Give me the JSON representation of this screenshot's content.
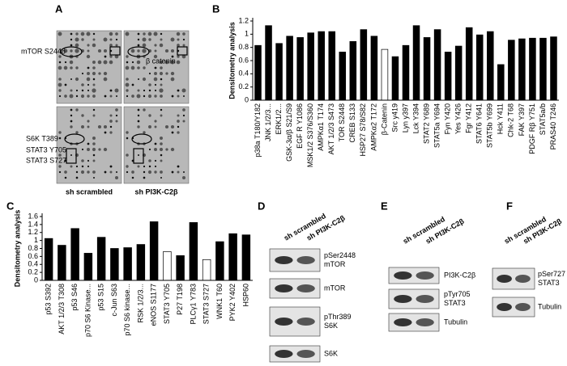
{
  "chart_data": [
    {
      "type": "bar",
      "ylabel": "Densitometry analysis",
      "categories": [
        "p38a T180/Y182",
        "JNK 1/2/3...",
        "ERK1/2...",
        "GSK-3α/β S21/S9",
        "EGF R Y1086",
        "MSK1/2 S376/S360",
        "AMPKα1 T174",
        "AKT 1/2/3 S473",
        "TOR S2448",
        "CREB S133",
        "HSP27 S78/S82",
        "AMPKα2 T172",
        "β-Catenin",
        "Src y419",
        "Lyn y397",
        "Lck Y394",
        "STAT2 Y689",
        "STAT5a Y694",
        "Fyn Y420",
        "Yes Y426",
        "Fgr Y412",
        "STAT6 Y641",
        "STAT5b Y699",
        "Hck Y411",
        "Chk-2 T68",
        "FAK Y397",
        "PDGF Rβ Y751",
        "STAT5a/b",
        "PRAS40 T246"
      ],
      "values": [
        0.83,
        1.13,
        0.86,
        0.97,
        0.95,
        1.02,
        1.04,
        1.04,
        0.73,
        0.89,
        1.07,
        0.97,
        0.77,
        0.66,
        0.83,
        1.13,
        0.95,
        1.07,
        0.73,
        0.82,
        1.1,
        0.99,
        1.04,
        0.54,
        0.91,
        0.93,
        0.94,
        0.94,
        0.96
      ],
      "colors": [
        "#000000",
        "#000000",
        "#000000",
        "#000000",
        "#000000",
        "#000000",
        "#000000",
        "#000000",
        "#000000",
        "#000000",
        "#000000",
        "#000000",
        "#ffffff",
        "#000000",
        "#000000",
        "#000000",
        "#000000",
        "#000000",
        "#000000",
        "#000000",
        "#000000",
        "#000000",
        "#000000",
        "#000000",
        "#000000",
        "#000000",
        "#000000",
        "#000000",
        "#000000"
      ],
      "ylim": [
        0,
        1.2
      ],
      "yticks": [
        0,
        0.2,
        0.4,
        0.6,
        0.8,
        1,
        1.2
      ]
    },
    {
      "type": "bar",
      "ylabel": "Densitometry analysis",
      "categories": [
        "p53 S392",
        "AKT 1/2/3 T308",
        "p53 S46",
        "p70 S6 Kinase...",
        "p53 S15",
        "c-Jun S63",
        "p70 S6 kinase...",
        "RSK 1/2/3...",
        "eNOS S1177",
        "STAT3 Y705",
        "P27 T198",
        "PLCγ1 Y783",
        "STAT3 S727",
        "WNK1 T60",
        "PYK2 Y402",
        "HSP60"
      ],
      "values": [
        1.05,
        0.88,
        1.3,
        0.68,
        1.08,
        0.8,
        0.82,
        0.9,
        1.47,
        0.72,
        0.62,
        1.45,
        0.52,
        0.97,
        1.17,
        1.14
      ],
      "colors": [
        "#000000",
        "#000000",
        "#000000",
        "#000000",
        "#000000",
        "#000000",
        "#000000",
        "#000000",
        "#000000",
        "#ffffff",
        "#000000",
        "#000000",
        "#ffffff",
        "#000000",
        "#000000",
        "#000000"
      ],
      "ylim": [
        0,
        1.6
      ],
      "yticks": [
        0,
        0.2,
        0.4,
        0.6,
        0.8,
        1,
        1.2,
        1.4,
        1.6
      ]
    }
  ],
  "figure": {
    "A": {
      "letter": "A",
      "top_labels": [
        "mTOR S2448",
        "β catenin"
      ],
      "bottom_labels": [
        "S6K T389",
        "STAT3 Y705",
        "STAT3 S727"
      ],
      "columns": [
        "sh scrambled",
        "sh PI3K-C2β"
      ]
    },
    "B": {
      "letter": "B"
    },
    "C": {
      "letter": "C"
    },
    "D": {
      "letter": "D",
      "columns": [
        "sh scrambled",
        "sh PI3K-C2β"
      ],
      "blots": [
        [
          "pSer2448",
          "mTOR"
        ],
        [
          "mTOR"
        ],
        [
          "pThr389",
          "S6K"
        ],
        [
          "S6K"
        ]
      ]
    },
    "E": {
      "letter": "E",
      "columns": [
        "sh scrambled",
        "sh PI3K-C2β"
      ],
      "blots": [
        [
          "PI3K-C2β"
        ],
        [
          "pTyr705",
          "STAT3"
        ],
        [
          "Tubulin"
        ]
      ]
    },
    "F": {
      "letter": "F",
      "columns": [
        "sh scrambled",
        "sh PI3K-C2β"
      ],
      "blots": [
        [
          "pSer727",
          "STAT3"
        ],
        [
          "Tubulin"
        ]
      ]
    }
  }
}
